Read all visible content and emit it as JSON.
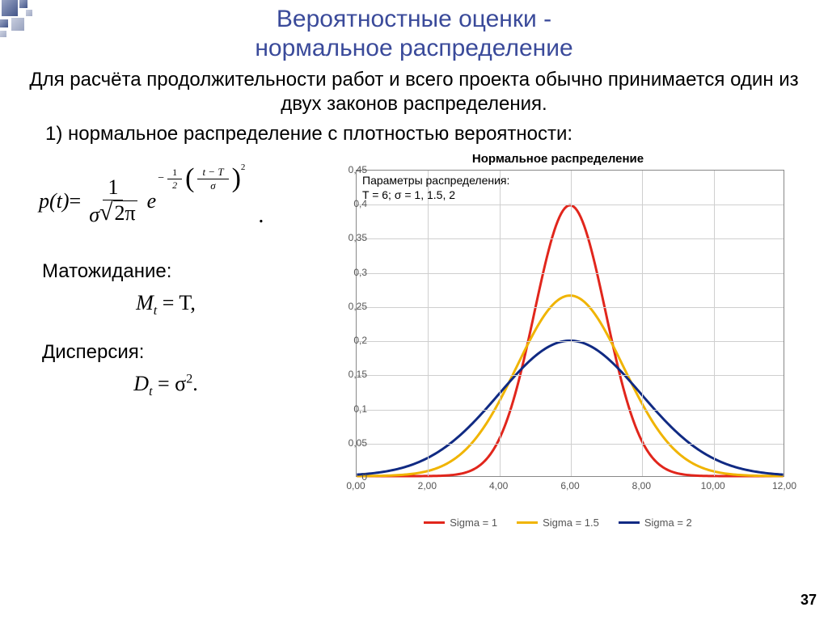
{
  "title_line1": "Вероятностные оценки -",
  "title_line2": "нормальное распределение",
  "para1": "Для расчёта продолжительности работ и всего проекта обычно принимается один из двух законов распределения.",
  "para2": "1) нормальное распределение с плотностью вероятности:",
  "label_expectation": "Матожидание:",
  "eq_expectation": "M",
  "eq_expectation_sub": "t",
  "eq_expectation_rhs": " = T,",
  "label_dispersion": "Дисперсия:",
  "eq_dispersion": "D",
  "eq_dispersion_sub": "t",
  "eq_dispersion_rhs": " = σ",
  "eq_dispersion_sup": "2",
  "eq_dispersion_end": ".",
  "chart": {
    "title": "Нормальное распределение",
    "param_line1": "Параметры распределения:",
    "param_line2": "T = 6; σ = 1, 1.5, 2",
    "x_min": 0,
    "x_max": 12,
    "y_min": 0,
    "y_max": 0.45,
    "x_ticks": [
      "0,00",
      "2,00",
      "4,00",
      "6,00",
      "8,00",
      "10,00",
      "12,00"
    ],
    "x_tick_vals": [
      0,
      2,
      4,
      6,
      8,
      10,
      12
    ],
    "y_ticks": [
      "0",
      "0,05",
      "0,1",
      "0,15",
      "0,2",
      "0,25",
      "0,3",
      "0,35",
      "0,4",
      "0,45"
    ],
    "y_tick_vals": [
      0,
      0.05,
      0.1,
      0.15,
      0.2,
      0.25,
      0.3,
      0.35,
      0.4,
      0.45
    ],
    "grid_color": "#cfcfcf",
    "plot_bg": "#ffffff",
    "series": [
      {
        "name": "Sigma = 1",
        "color": "#e1261c",
        "sigma": 1.0,
        "T": 6.0,
        "width": 3
      },
      {
        "name": "Sigma = 1.5",
        "color": "#f0b400",
        "sigma": 1.5,
        "T": 6.0,
        "width": 3
      },
      {
        "name": "Sigma = 2",
        "color": "#102a83",
        "sigma": 2.0,
        "T": 6.0,
        "width": 3
      }
    ],
    "legend": [
      "Sigma = 1",
      "Sigma = 1.5",
      "Sigma = 2"
    ],
    "legend_colors": [
      "#e1261c",
      "#f0b400",
      "#102a83"
    ]
  },
  "page_number": "37",
  "formula": {
    "lhs": "p(t)",
    "eq": " = ",
    "frac_num": "1",
    "frac_den_sigma": "σ",
    "frac_den_root": "2π",
    "e": "e",
    "exp_neg": "−",
    "exp_frac_num": "1",
    "exp_frac_den": "2",
    "exp_inner_num": "t − T",
    "exp_inner_den": "σ",
    "exp_sq": "2"
  }
}
